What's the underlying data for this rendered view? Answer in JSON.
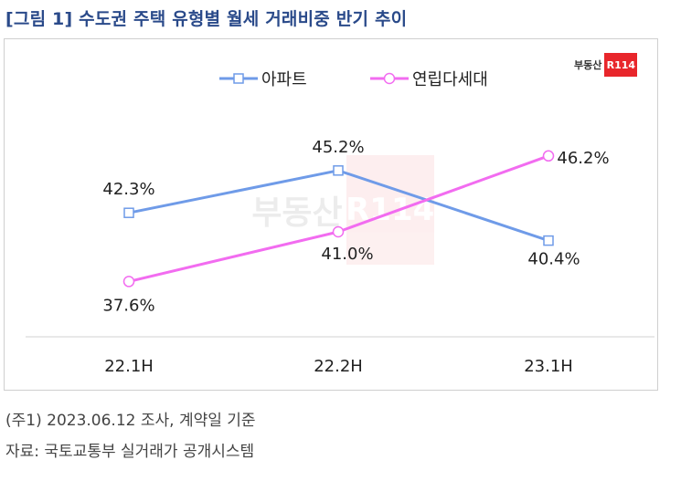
{
  "title": "[그림 1] 수도권 주택 유형별 월세 거래비중 반기 추이",
  "logo": {
    "text": "부동산",
    "badge": "R114"
  },
  "notes": [
    "(주1) 2023.06.12 조사, 계약일 기준",
    "자료: 국토교통부 실거래가 공개시스템"
  ],
  "colors": {
    "title": "#2a4a8a",
    "apartment": "#6f9be8",
    "multi": "#f26cf0",
    "axis": "#d0d0d0"
  },
  "chart_data": {
    "type": "line",
    "title": "[그림 1] 수도권 주택 유형별 월세 거래비중 반기 추이",
    "categories": [
      "22.1H",
      "22.2H",
      "23.1H"
    ],
    "legend_position": "top",
    "grid": false,
    "series": [
      {
        "name": "아파트",
        "values": [
          42.3,
          45.2,
          40.4
        ],
        "labels": [
          "42.3%",
          "45.2%",
          "40.4%"
        ],
        "marker": "square",
        "color": "#6f9be8"
      },
      {
        "name": "연립다세대",
        "values": [
          37.6,
          41.0,
          46.2
        ],
        "labels": [
          "37.6%",
          "41.0%",
          "46.2%"
        ],
        "marker": "circle",
        "color": "#f26cf0"
      }
    ],
    "ylim": [
      32,
      50
    ]
  }
}
